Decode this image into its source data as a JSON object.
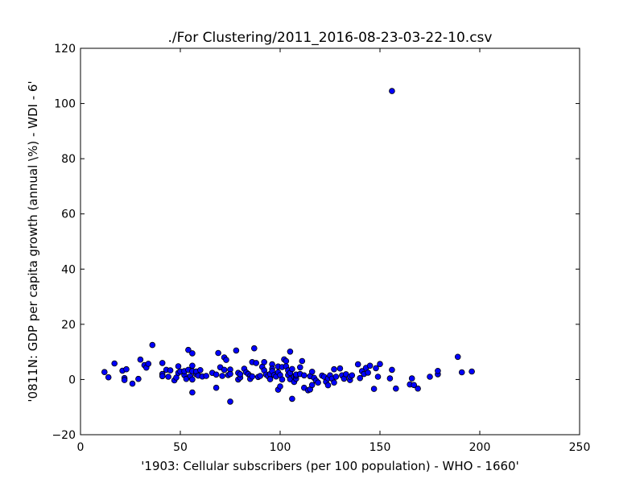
{
  "chart_data": {
    "type": "scatter",
    "title": "./For Clustering/2011_2016-08-23-03-22-10.csv",
    "xlabel": "'1903: Cellular subscribers (per 100 population) - WHO - 1660'",
    "ylabel": "'0811N: GDP per capita growth  (annual \\%) - WDI - 6'",
    "xlim": [
      0,
      250
    ],
    "ylim": [
      -20,
      120
    ],
    "xticks": [
      0,
      50,
      100,
      150,
      200,
      250
    ],
    "yticks": [
      -20,
      0,
      20,
      40,
      60,
      80,
      100,
      120
    ],
    "grid": false,
    "marker_color": "#0000ff",
    "marker_edge": "#000000",
    "series": [
      {
        "points": [
          [
            12,
            2.7
          ],
          [
            14,
            0.8
          ],
          [
            17,
            5.8
          ],
          [
            21,
            3.2
          ],
          [
            22,
            0.5
          ],
          [
            22,
            -0.2
          ],
          [
            23,
            3.7
          ],
          [
            26,
            -1.5
          ],
          [
            29,
            0.2
          ],
          [
            30,
            7.2
          ],
          [
            32,
            5.2
          ],
          [
            33,
            4.3
          ],
          [
            34,
            5.7
          ],
          [
            36,
            12.5
          ],
          [
            41,
            2.0
          ],
          [
            41,
            6.0
          ],
          [
            41,
            1.2
          ],
          [
            43,
            3.5
          ],
          [
            44,
            1.0
          ],
          [
            45,
            3.3
          ],
          [
            47,
            -0.3
          ],
          [
            48,
            0.7
          ],
          [
            49,
            4.8
          ],
          [
            49,
            2.4
          ],
          [
            50,
            2.9
          ],
          [
            52,
            1.6
          ],
          [
            52,
            3.0
          ],
          [
            53,
            0.2
          ],
          [
            54,
            10.7
          ],
          [
            54,
            3.5
          ],
          [
            55,
            1.2
          ],
          [
            56,
            9.5
          ],
          [
            56,
            5.0
          ],
          [
            56,
            3.0
          ],
          [
            56,
            0.0
          ],
          [
            56,
            -4.7
          ],
          [
            58,
            1.9
          ],
          [
            58,
            2.9
          ],
          [
            59,
            1.4
          ],
          [
            60,
            3.4
          ],
          [
            61,
            1.1
          ],
          [
            63,
            1.3
          ],
          [
            66,
            2.4
          ],
          [
            68,
            -3.0
          ],
          [
            68,
            1.8
          ],
          [
            69,
            9.6
          ],
          [
            70,
            4.4
          ],
          [
            71,
            1.3
          ],
          [
            72,
            8.0
          ],
          [
            72,
            3.5
          ],
          [
            73,
            7.1
          ],
          [
            74,
            1.6
          ],
          [
            75,
            3.6
          ],
          [
            75,
            -8.0
          ],
          [
            75,
            2.0
          ],
          [
            78,
            10.5
          ],
          [
            79,
            2.4
          ],
          [
            79,
            0.0
          ],
          [
            80,
            0.7
          ],
          [
            80,
            1.9
          ],
          [
            82,
            3.9
          ],
          [
            83,
            2.6
          ],
          [
            84,
            2.0
          ],
          [
            85,
            1.3
          ],
          [
            85,
            0.2
          ],
          [
            86,
            1.1
          ],
          [
            86,
            6.3
          ],
          [
            87,
            11.3
          ],
          [
            88,
            6.0
          ],
          [
            89,
            0.9
          ],
          [
            90,
            1.3
          ],
          [
            91,
            4.6
          ],
          [
            92,
            6.3
          ],
          [
            92,
            3.3
          ],
          [
            93,
            1.8
          ],
          [
            94,
            1.2
          ],
          [
            95,
            2.0
          ],
          [
            95,
            0.1
          ],
          [
            96,
            5.5
          ],
          [
            96,
            3.9
          ],
          [
            96,
            3.0
          ],
          [
            97,
            1.6
          ],
          [
            98,
            1.1
          ],
          [
            99,
            -3.7
          ],
          [
            99,
            4.7
          ],
          [
            99,
            2.6
          ],
          [
            100,
            1.6
          ],
          [
            100,
            -2.5
          ],
          [
            101,
            4.5
          ],
          [
            101,
            0.0
          ],
          [
            102,
            7.3
          ],
          [
            103,
            6.7
          ],
          [
            103,
            4.8
          ],
          [
            104,
            3.3
          ],
          [
            104,
            1.6
          ],
          [
            105,
            0.1
          ],
          [
            105,
            10.1
          ],
          [
            105,
            2.4
          ],
          [
            106,
            3.8
          ],
          [
            106,
            -7.0
          ],
          [
            107,
            1.0
          ],
          [
            107,
            -0.9
          ],
          [
            108,
            0.3
          ],
          [
            108,
            1.3
          ],
          [
            108,
            1.8
          ],
          [
            110,
            4.4
          ],
          [
            110,
            2.0
          ],
          [
            111,
            6.7
          ],
          [
            112,
            1.5
          ],
          [
            112,
            -3.0
          ],
          [
            114,
            -3.9
          ],
          [
            115,
            -3.6
          ],
          [
            115,
            1.2
          ],
          [
            116,
            -2.0
          ],
          [
            116,
            2.8
          ],
          [
            117,
            0.6
          ],
          [
            118,
            -0.4
          ],
          [
            119,
            -1.1
          ],
          [
            121,
            1.4
          ],
          [
            122,
            1.0
          ],
          [
            123,
            -0.8
          ],
          [
            124,
            0.4
          ],
          [
            124,
            -2.1
          ],
          [
            125,
            1.5
          ],
          [
            126,
            0.3
          ],
          [
            127,
            -1.1
          ],
          [
            127,
            3.7
          ],
          [
            128,
            1.0
          ],
          [
            130,
            4.0
          ],
          [
            131,
            1.5
          ],
          [
            132,
            0.3
          ],
          [
            133,
            1.9
          ],
          [
            135,
            -0.2
          ],
          [
            135,
            1.0
          ],
          [
            136,
            1.5
          ],
          [
            139,
            5.5
          ],
          [
            140,
            0.5
          ],
          [
            141,
            3.0
          ],
          [
            142,
            2.0
          ],
          [
            143,
            4.2
          ],
          [
            144,
            2.5
          ],
          [
            145,
            5.0
          ],
          [
            147,
            -3.4
          ],
          [
            148,
            4.1
          ],
          [
            149,
            1.0
          ],
          [
            150,
            5.6
          ],
          [
            155,
            0.4
          ],
          [
            156,
            104.5
          ],
          [
            156,
            3.5
          ],
          [
            158,
            -3.3
          ],
          [
            165,
            -1.8
          ],
          [
            166,
            0.4
          ],
          [
            167,
            -2.0
          ],
          [
            169,
            -3.3
          ],
          [
            175,
            1.0
          ],
          [
            179,
            1.9
          ],
          [
            179,
            3.1
          ],
          [
            189,
            8.2
          ],
          [
            191,
            2.6
          ],
          [
            196,
            2.9
          ]
        ]
      }
    ]
  }
}
